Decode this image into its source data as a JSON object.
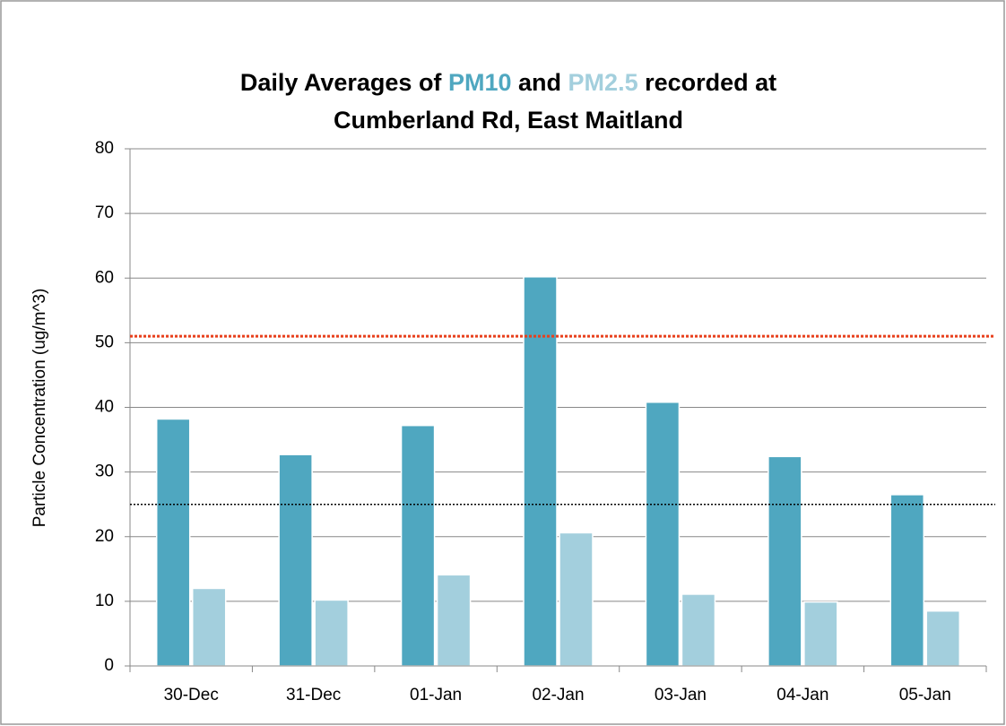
{
  "chart_data": {
    "type": "bar",
    "title_parts": [
      "Daily Averages of",
      "and",
      "recorded at",
      "Cumberland Rd, East Maitland"
    ],
    "ylabel": "Particle Concentration (ug/m^3)",
    "categories": [
      "30-Dec",
      "31-Dec",
      "01-Jan",
      "02-Jan",
      "03-Jan",
      "04-Jan",
      "05-Jan"
    ],
    "series": [
      {
        "name": "PM10",
        "color": "#4fa7c0",
        "values": [
          38.2,
          32.7,
          37.2,
          60.2,
          40.8,
          32.4,
          26.5
        ]
      },
      {
        "name": "PM2.5",
        "color": "#a3cfdd",
        "values": [
          12,
          10.2,
          14.1,
          20.6,
          11.1,
          9.9,
          8.5
        ]
      }
    ],
    "reference_lines": [
      {
        "value": 51,
        "color": "#e8401c"
      },
      {
        "value": 25,
        "color": "#000000"
      }
    ],
    "ylim": [
      0,
      80
    ],
    "yticks": [
      0,
      10,
      20,
      30,
      40,
      50,
      60,
      70,
      80
    ],
    "grid": true
  }
}
